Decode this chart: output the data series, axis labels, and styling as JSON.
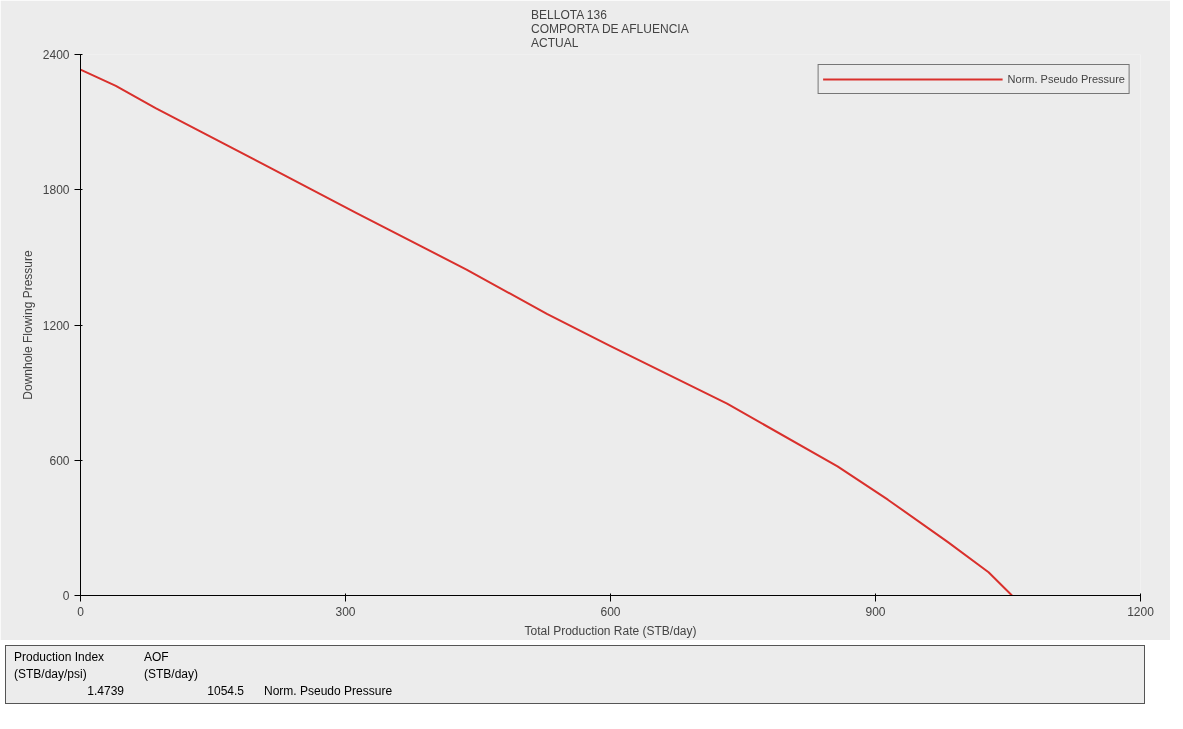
{
  "chart_data": {
    "type": "line",
    "title": "BELLOTA 136\nCOMPORTA DE AFLUENCIA\nACTUAL",
    "xlabel": "Total Production Rate (STB/day)",
    "ylabel": "Downhole Flowing Pressure",
    "xlim": [
      0,
      1200
    ],
    "ylim": [
      0,
      2400
    ],
    "xticks": [
      0,
      300,
      600,
      900,
      1200
    ],
    "yticks": [
      0,
      600,
      1200,
      1800,
      2400
    ],
    "grid": false,
    "legend": "top right",
    "series": [
      {
        "name": "Norm. Pseudo Pressure",
        "color": "#d9302c",
        "x": [
          0,
          40,
          85,
          210,
          312,
          437,
          528,
          600,
          732,
          857,
          914,
          982,
          1028,
          1054.5
        ],
        "values": [
          2333,
          2261,
          2162,
          1907,
          1697,
          1446,
          1249,
          1106,
          851,
          573,
          425,
          237,
          103,
          0
        ]
      }
    ],
    "annotations": [
      "Production Index\n(STB/day/psi)",
      "AOF\n(STB/day)",
      "1.4739",
      "1054.5",
      "Norm. Pseudo Pressure"
    ]
  }
}
